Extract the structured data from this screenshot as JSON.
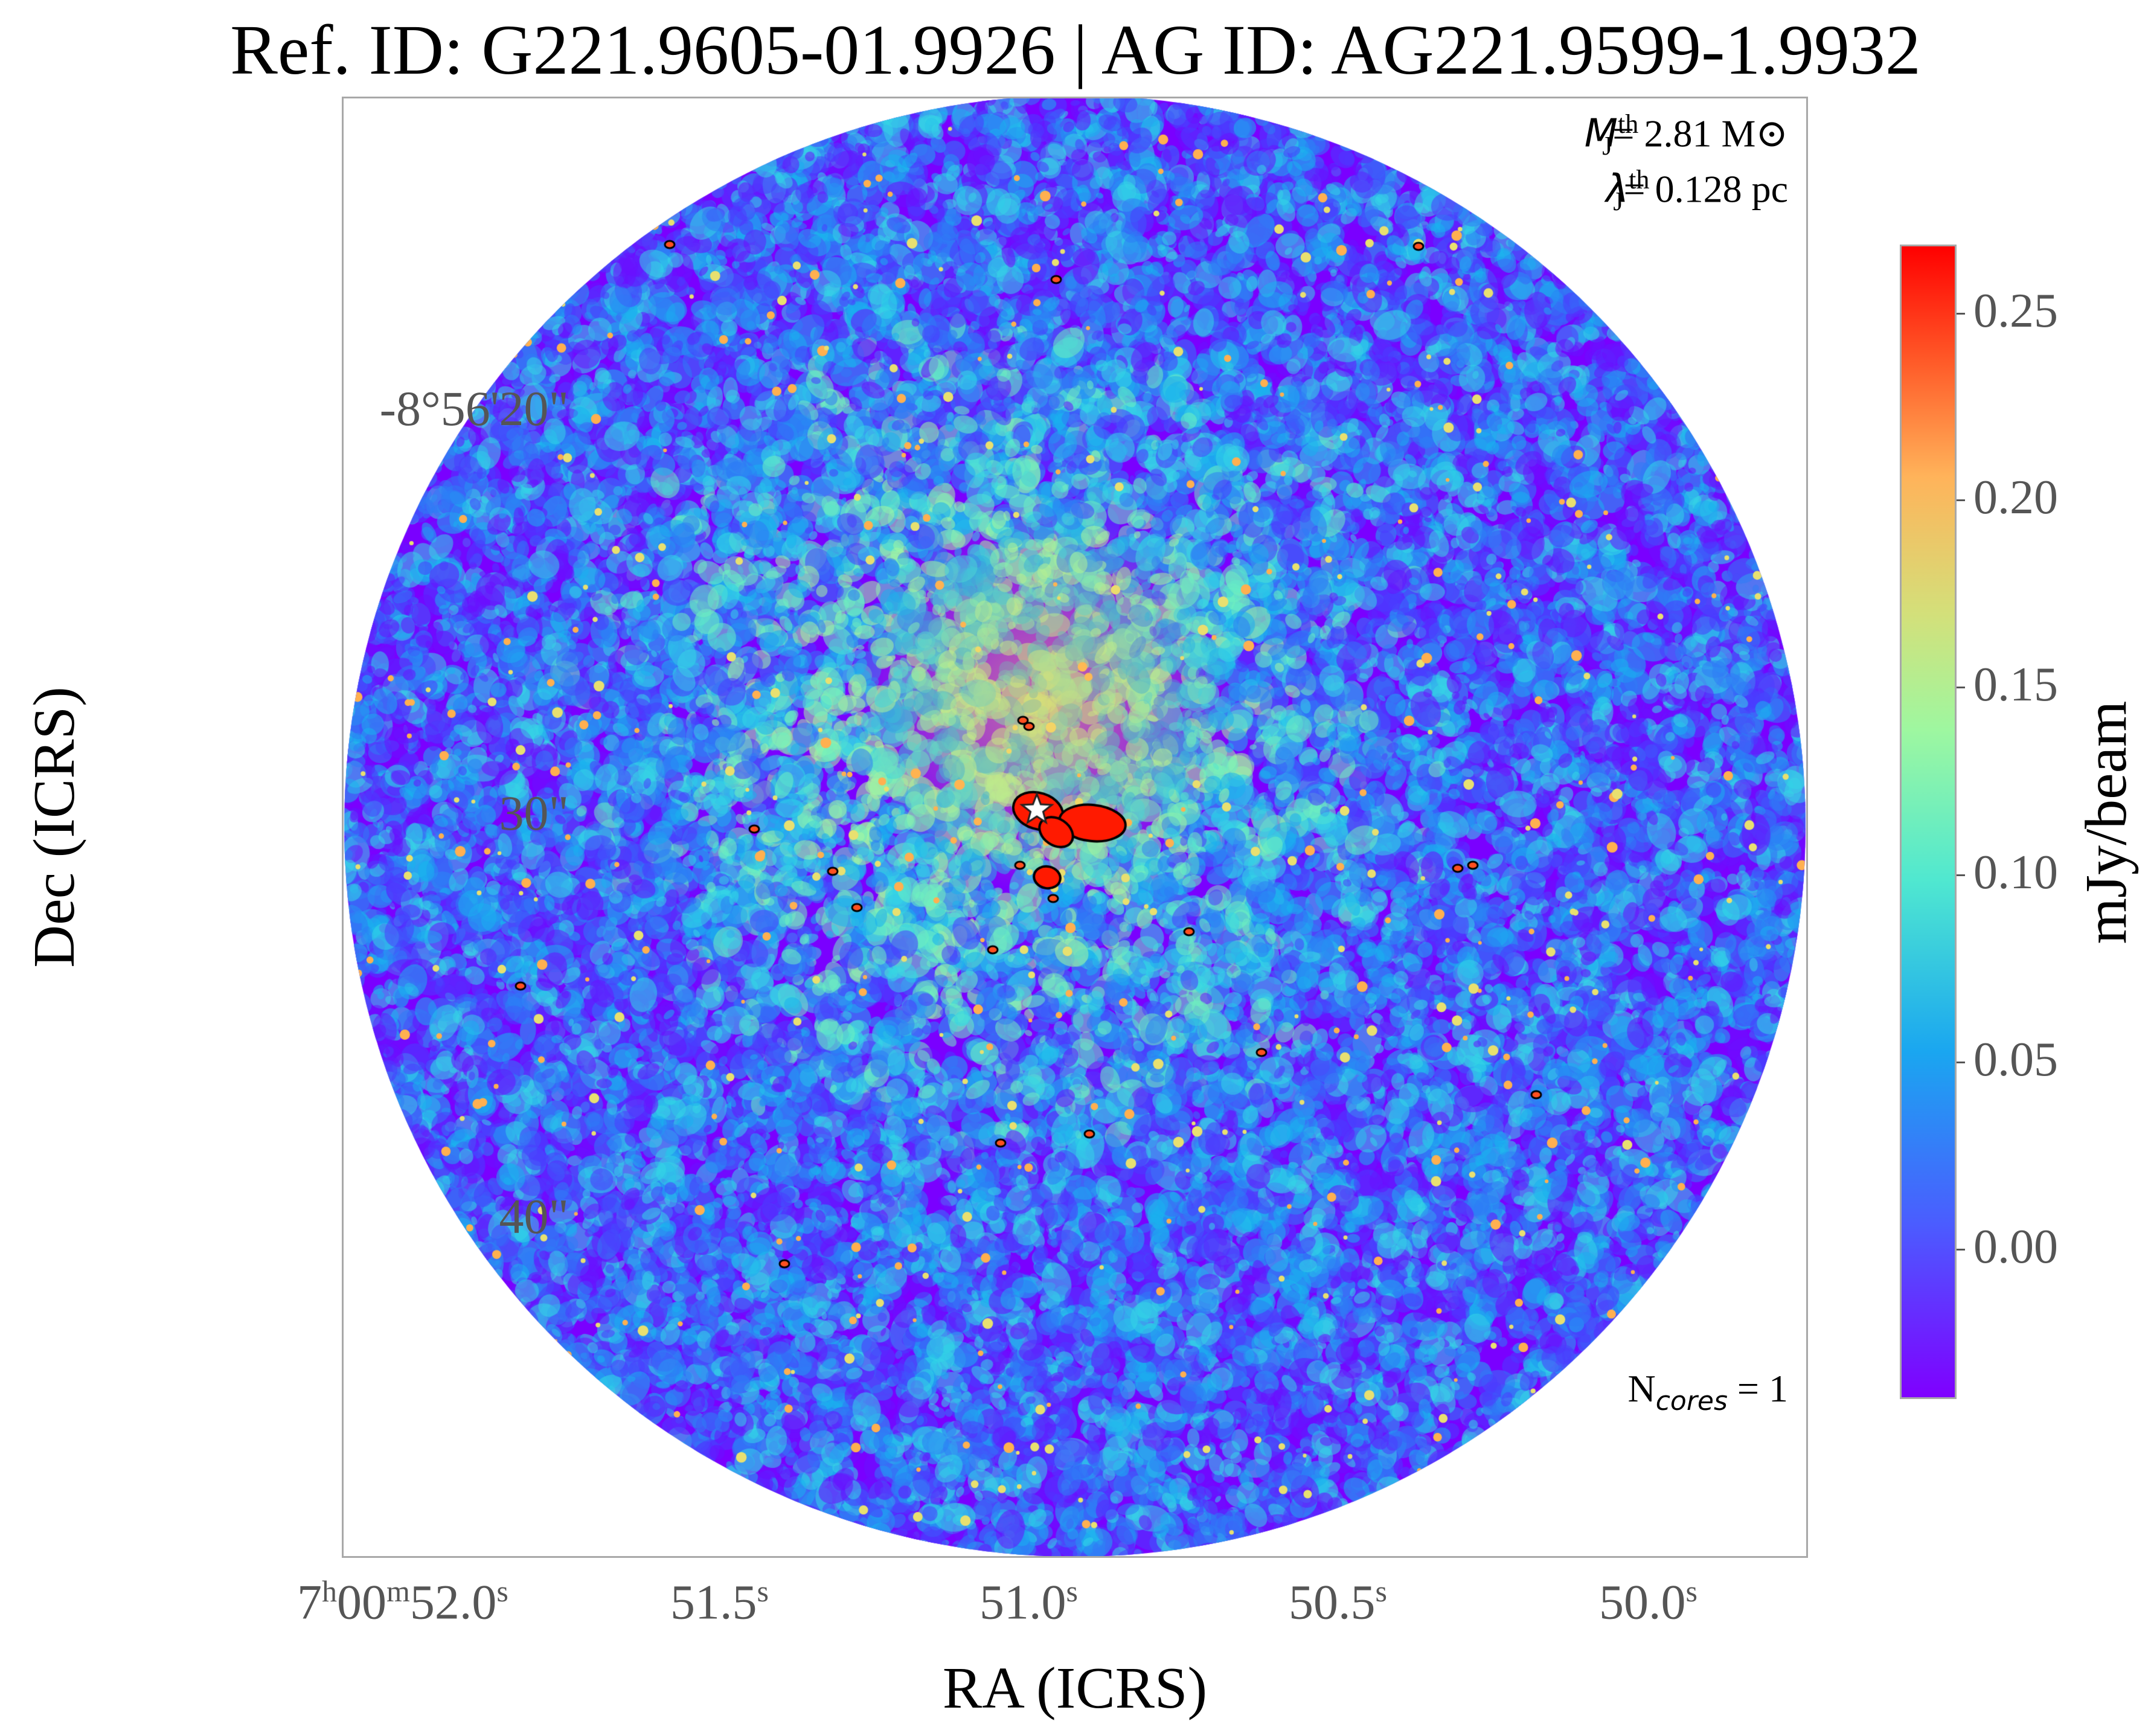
{
  "title": "Ref. ID: G221.9605-01.9926 | AG ID: AG221.9599-1.9932",
  "annotations": {
    "mj_label": "M",
    "mj_sub": "J",
    "mj_sup": "th",
    "mj_value": "= 2.81 M",
    "mj_unit_symbol": "⊙",
    "lj_label": "λ",
    "lj_sub": "J",
    "lj_sup": "th",
    "lj_value": "= 0.128 pc",
    "ncores_label": "N",
    "ncores_sub": "cores",
    "ncores_value": " = 1"
  },
  "axes": {
    "xlabel": "RA (ICRS)",
    "ylabel": "Dec (ICRS)",
    "yticks": [
      "-8°56'20\"",
      "30\"",
      "40\""
    ],
    "xticks": [
      {
        "main": "7",
        "sup1": "h",
        "main2": "00",
        "sup2": "m",
        "main3": "52.0",
        "sup3": "s"
      },
      {
        "main": "51.5",
        "sup": "s"
      },
      {
        "main": "51.0",
        "sup": "s"
      },
      {
        "main": "50.5",
        "sup": "s"
      },
      {
        "main": "50.0",
        "sup": "s"
      }
    ]
  },
  "colorbar": {
    "label": "mJy/beam",
    "ticks": [
      "0.25",
      "0.20",
      "0.15",
      "0.10",
      "0.05",
      "0.00"
    ],
    "colors": [
      "#7f00ff",
      "#1aa6f0",
      "#9ef7a0",
      "#ffb35a",
      "#ff0000"
    ]
  },
  "map": {
    "colormap": "rainbow",
    "marker": "star-icon"
  }
}
